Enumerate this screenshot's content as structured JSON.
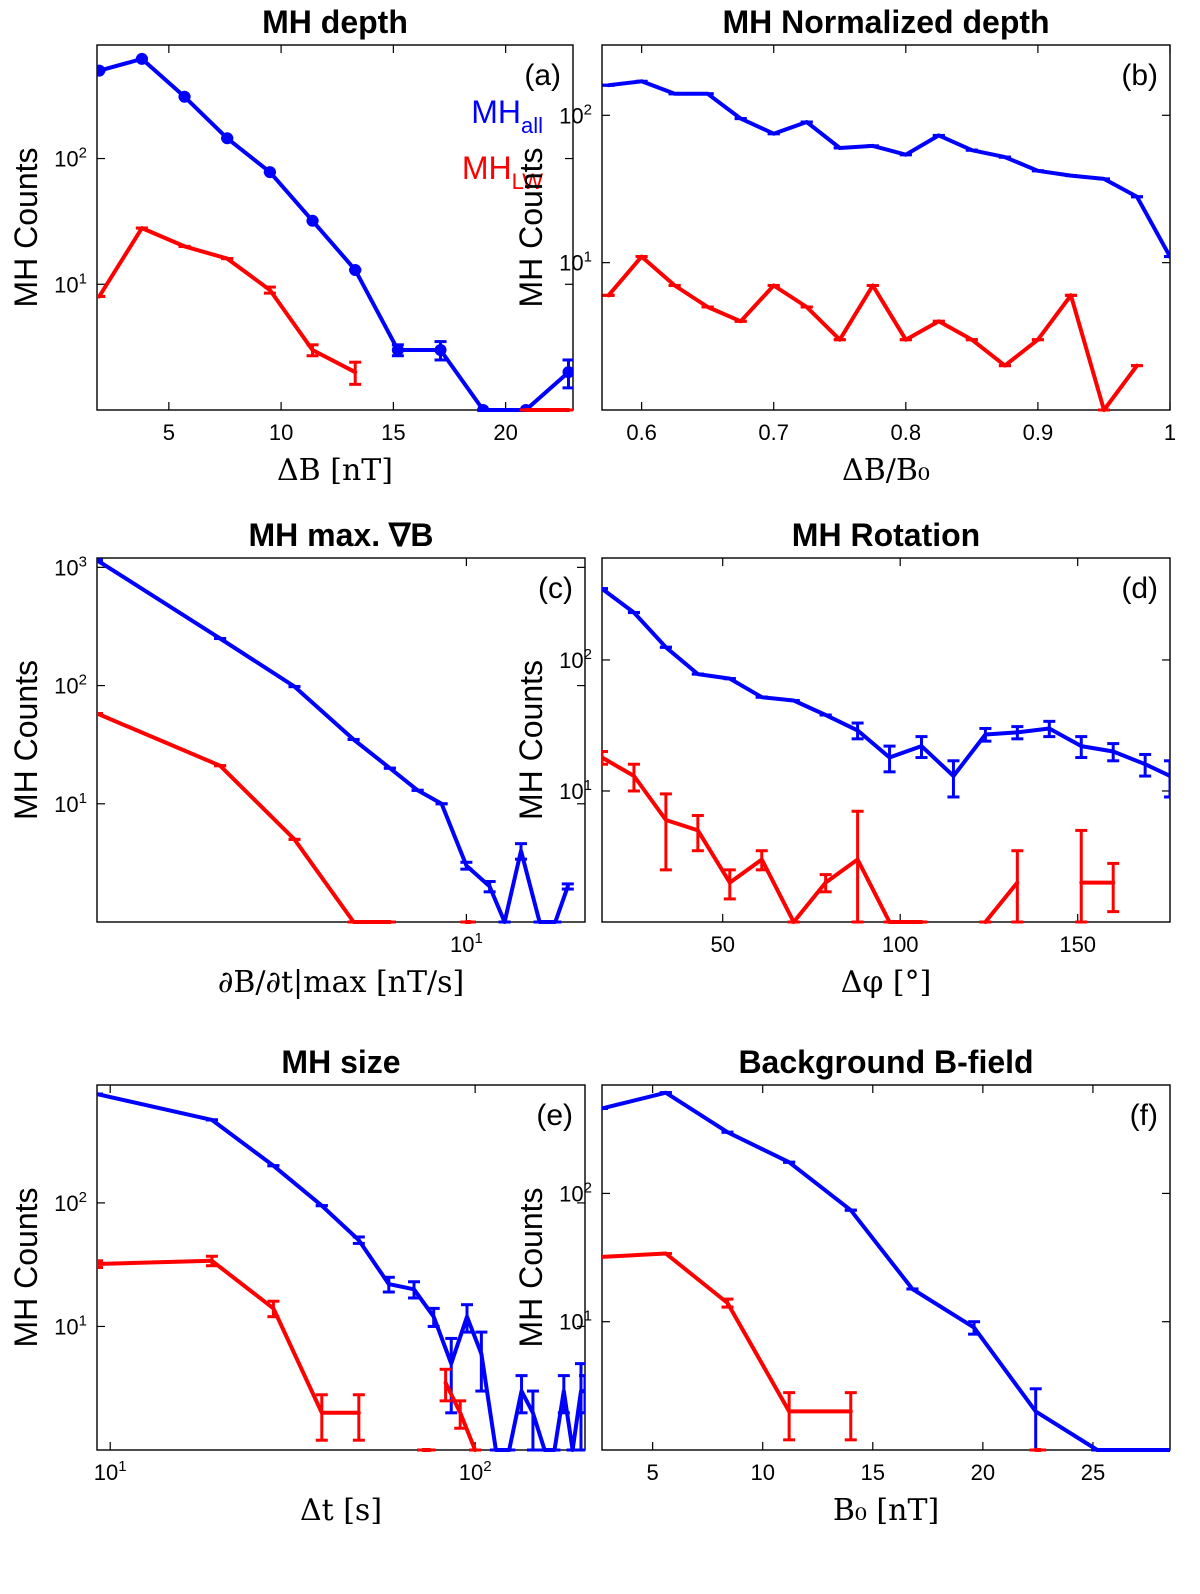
{
  "chart_data": [
    {
      "id": "a",
      "type": "line",
      "title": "MH depth",
      "panel_label": "(a)",
      "xlabel": "ΔB [nT]",
      "ylabel": "MH Counts",
      "xscale": "linear",
      "yscale": "log",
      "xlim": [
        1.8,
        23
      ],
      "ylim": [
        1.0,
        800
      ],
      "xticks": [
        5,
        10,
        15,
        20
      ],
      "xtick_labels": [
        "5",
        "10",
        "15",
        "20"
      ],
      "yticks": [
        10,
        100
      ],
      "ytick_labels": [
        "10^1",
        "10^2"
      ],
      "legend": {
        "placement": "top-right",
        "entries": [
          {
            "base": "MH",
            "sub": "all",
            "color": "#0000ff"
          },
          {
            "base": "MH",
            "sub": "LW",
            "color": "#ff0000"
          }
        ]
      },
      "series": [
        {
          "name": "MH_all",
          "color": "#0000ff",
          "marker": "circle",
          "x": [
            1.9,
            3.8,
            5.7,
            7.6,
            9.5,
            11.4,
            13.3,
            15.2,
            17.1,
            19.0,
            20.9,
            22.8
          ],
          "y": [
            500,
            620,
            310,
            145,
            78,
            32,
            13,
            3,
            3,
            1,
            1,
            2
          ],
          "err": [
            0,
            0,
            0,
            0,
            0,
            0,
            0,
            0.3,
            0.5,
            0,
            0,
            0.5
          ]
        },
        {
          "name": "MH_LW",
          "color": "#ff0000",
          "marker": "none",
          "x": [
            1.9,
            3.8,
            5.7,
            7.6,
            9.5,
            11.4,
            13.3
          ],
          "y": [
            8,
            28,
            20,
            16,
            9,
            3,
            2
          ],
          "err": [
            0,
            0,
            0,
            0,
            0.5,
            0.3,
            0.4
          ]
        },
        {
          "name": "MH_LW",
          "color": "#ff0000",
          "marker": "none",
          "x": [
            20.9,
            22.8
          ],
          "y": [
            1,
            1
          ],
          "err": [
            0,
            0
          ]
        }
      ]
    },
    {
      "id": "b",
      "type": "line",
      "title": "MH Normalized depth",
      "panel_label": "(b)",
      "xlabel": "ΔB/B₀",
      "ylabel": "MH Counts",
      "xscale": "linear",
      "yscale": "log",
      "xlim": [
        0.57,
        1.0
      ],
      "ylim": [
        1.0,
        300
      ],
      "xticks": [
        0.6,
        0.7,
        0.8,
        0.9,
        1.0
      ],
      "xtick_labels": [
        "0.6",
        "0.7",
        "0.8",
        "0.9",
        "1"
      ],
      "yticks": [
        10,
        100
      ],
      "ytick_labels": [
        "10^1",
        "10^2"
      ],
      "series": [
        {
          "name": "MH_all",
          "color": "#0000ff",
          "marker": "none",
          "x": [
            0.575,
            0.6,
            0.625,
            0.65,
            0.675,
            0.7,
            0.725,
            0.75,
            0.775,
            0.8,
            0.825,
            0.85,
            0.875,
            0.9,
            0.925,
            0.95,
            0.975,
            1.0
          ],
          "y": [
            160,
            170,
            140,
            140,
            95,
            75,
            90,
            60,
            62,
            54,
            73,
            58,
            52,
            42,
            39,
            37,
            28,
            11
          ],
          "err": [
            0,
            0,
            0,
            0,
            0,
            0,
            0,
            0,
            0,
            0,
            0,
            0,
            0,
            0,
            0,
            0,
            0,
            0
          ]
        },
        {
          "name": "MH_LW",
          "color": "#ff0000",
          "marker": "none",
          "x": [
            0.575,
            0.6,
            0.625,
            0.65,
            0.675,
            0.7,
            0.725,
            0.75,
            0.775,
            0.8,
            0.825,
            0.85,
            0.875,
            0.9,
            0.925,
            0.95,
            0.975
          ],
          "y": [
            6,
            11,
            7,
            5,
            4,
            7,
            5,
            3,
            7,
            3,
            4,
            3,
            2,
            3,
            6,
            1,
            2
          ],
          "err": [
            0,
            0,
            0,
            0,
            0,
            0,
            0,
            0,
            0,
            0,
            0,
            0,
            0,
            0,
            0,
            0,
            0
          ]
        }
      ]
    },
    {
      "id": "c",
      "type": "line",
      "title": "MH max. ∇B",
      "panel_label": "(c)",
      "xlabel": "∂B/∂t|max [nT/s]",
      "ylabel": "MH Counts",
      "xscale": "log",
      "yscale": "log",
      "xlim": [
        1.25,
        19.5
      ],
      "ylim": [
        1.0,
        1200
      ],
      "xticks": [
        10
      ],
      "xtick_labels": [
        "10^1"
      ],
      "yticks": [
        10,
        100,
        1000
      ],
      "ytick_labels": [
        "10^1",
        "10^2",
        "10^3"
      ],
      "series": [
        {
          "name": "MH_all",
          "color": "#0000ff",
          "marker": "none",
          "x": [
            1.25,
            2.5,
            3.8,
            5.3,
            6.5,
            7.6,
            8.7,
            10.0,
            11.4,
            12.4,
            13.6,
            15.1,
            16.5,
            17.7
          ],
          "y": [
            1150,
            250,
            98,
            35,
            20,
            13,
            10,
            3,
            2,
            1,
            4,
            1,
            1,
            2
          ],
          "err": [
            0,
            0,
            0,
            0,
            0,
            0,
            0,
            0.2,
            0.2,
            0,
            0.6,
            0,
            0,
            0.1
          ]
        },
        {
          "name": "MH_LW",
          "color": "#ff0000",
          "marker": "none",
          "x": [
            1.25,
            2.5,
            3.8,
            5.3,
            6.5
          ],
          "y": [
            58,
            21,
            5,
            1,
            1
          ],
          "err": [
            0,
            0,
            0,
            0,
            0
          ]
        },
        {
          "name": "MH_LW",
          "color": "#ff0000",
          "marker": "none",
          "x": [
            10.0,
            10.2
          ],
          "y": [
            1,
            1
          ],
          "err": [
            0,
            0
          ]
        }
      ]
    },
    {
      "id": "d",
      "type": "line",
      "title": "MH Rotation",
      "panel_label": "(d)",
      "xlabel": "Δφ [°]",
      "ylabel": "MH Counts",
      "xscale": "linear",
      "yscale": "log",
      "xlim": [
        16,
        176
      ],
      "ylim": [
        1.0,
        600
      ],
      "xticks": [
        50,
        100,
        150
      ],
      "xtick_labels": [
        "50",
        "100",
        "150"
      ],
      "yticks": [
        10,
        100
      ],
      "ytick_labels": [
        "10^1",
        "10^2"
      ],
      "series": [
        {
          "name": "MH_all",
          "color": "#0000ff",
          "marker": "none",
          "x": [
            16,
            25,
            34,
            43,
            52,
            61,
            70,
            79,
            88,
            97,
            106,
            115,
            124,
            133,
            142,
            151,
            160,
            169,
            176
          ],
          "y": [
            350,
            230,
            125,
            78,
            72,
            52,
            49,
            38,
            29,
            18,
            22,
            13,
            27,
            28,
            30,
            22,
            20,
            16,
            13
          ],
          "err": [
            0,
            0,
            0,
            0,
            0,
            0,
            0,
            0,
            4,
            4,
            4,
            4,
            3,
            3,
            4,
            4,
            3,
            3,
            4
          ]
        },
        {
          "name": "MH_LW",
          "color": "#ff0000",
          "marker": "none",
          "x": [
            16,
            25,
            34,
            43,
            52,
            61,
            70,
            79,
            88,
            97,
            106
          ],
          "y": [
            18,
            13,
            6,
            5,
            2,
            3,
            1,
            2,
            3,
            1,
            1
          ],
          "err": [
            2,
            3,
            3.5,
            1.5,
            0.5,
            0.5,
            0,
            0.3,
            4,
            0,
            0
          ]
        },
        {
          "name": "MH_LW",
          "color": "#ff0000",
          "marker": "none",
          "x": [
            124,
            133
          ],
          "y": [
            1,
            2
          ],
          "err": [
            0,
            1.5
          ]
        },
        {
          "name": "MH_LW",
          "color": "#ff0000",
          "marker": "none",
          "x": [
            151,
            160
          ],
          "y": [
            2,
            2
          ],
          "err": [
            3,
            0.8
          ]
        }
      ]
    },
    {
      "id": "e",
      "type": "line",
      "title": "MH size",
      "panel_label": "(e)",
      "xlabel": "Δt [s]",
      "ylabel": "MH Counts",
      "xscale": "log",
      "yscale": "log",
      "xlim": [
        9.2,
        200
      ],
      "ylim": [
        1.0,
        900
      ],
      "xticks": [
        10,
        100
      ],
      "xtick_labels": [
        "10^1",
        "10^2"
      ],
      "yticks": [
        10,
        100
      ],
      "ytick_labels": [
        "10^1",
        "10^2"
      ],
      "series": [
        {
          "name": "MH_all",
          "color": "#0000ff",
          "marker": "none",
          "x": [
            9.2,
            19,
            28,
            38,
            48,
            58,
            68,
            77,
            86,
            95,
            104,
            114,
            124,
            134,
            144,
            155,
            165,
            175,
            185,
            195,
            200
          ],
          "y": [
            760,
            470,
            200,
            95,
            50,
            22,
            20,
            12,
            5,
            12,
            6,
            1,
            1,
            3,
            2,
            1,
            1,
            3,
            1,
            3,
            3
          ],
          "err": [
            0,
            0,
            0,
            0,
            3,
            3,
            3,
            2,
            3,
            3,
            3,
            0,
            0,
            1,
            1,
            0,
            0,
            1,
            0,
            2,
            1
          ]
        },
        {
          "name": "MH_LW",
          "color": "#ff0000",
          "marker": "none",
          "x": [
            9.2,
            19,
            28,
            38,
            48
          ],
          "y": [
            32,
            34,
            14,
            2,
            2
          ],
          "err": [
            2,
            3,
            2,
            0.8,
            0.8
          ]
        },
        {
          "name": "MH_LW",
          "color": "#ff0000",
          "marker": "none",
          "x": [
            72,
            75
          ],
          "y": [
            1,
            1
          ],
          "err": [
            0,
            0
          ]
        },
        {
          "name": "MH_LW",
          "color": "#ff0000",
          "marker": "none",
          "x": [
            83,
            91,
            100
          ],
          "y": [
            3.5,
            2,
            1
          ],
          "err": [
            1,
            0.5,
            0
          ]
        }
      ]
    },
    {
      "id": "f",
      "type": "line",
      "title": "Background B-field",
      "panel_label": "(f)",
      "xlabel": "B₀ [nT]",
      "ylabel": "MH Counts",
      "xscale": "linear",
      "yscale": "log",
      "xlim": [
        2.7,
        28.5
      ],
      "ylim": [
        1.0,
        700
      ],
      "xticks": [
        5,
        10,
        15,
        20,
        25
      ],
      "xtick_labels": [
        "5",
        "10",
        "15",
        "20",
        "25"
      ],
      "yticks": [
        10,
        100
      ],
      "ytick_labels": [
        "10^1",
        "10^2"
      ],
      "series": [
        {
          "name": "MH_all",
          "color": "#0000ff",
          "marker": "none",
          "x": [
            2.7,
            5.6,
            8.4,
            11.2,
            14.0,
            16.8,
            19.6,
            22.4,
            25.2,
            28.0,
            28.5
          ],
          "y": [
            460,
            610,
            300,
            175,
            74,
            18,
            9,
            2,
            1,
            1,
            1
          ],
          "err": [
            0,
            0,
            0,
            0,
            0,
            0,
            1,
            1,
            0,
            0,
            0
          ]
        },
        {
          "name": "MH_LW",
          "color": "#ff0000",
          "marker": "none",
          "x": [
            2.7,
            5.6,
            8.4,
            11.2,
            14.0
          ],
          "y": [
            32,
            34,
            14,
            2,
            2
          ],
          "err": [
            0,
            0,
            1,
            0.8,
            0.8
          ]
        },
        {
          "name": "MH_LW",
          "color": "#ff0000",
          "marker": "none",
          "x": [
            22.4,
            22.6
          ],
          "y": [
            1,
            1
          ],
          "err": [
            0,
            0
          ]
        }
      ]
    }
  ]
}
